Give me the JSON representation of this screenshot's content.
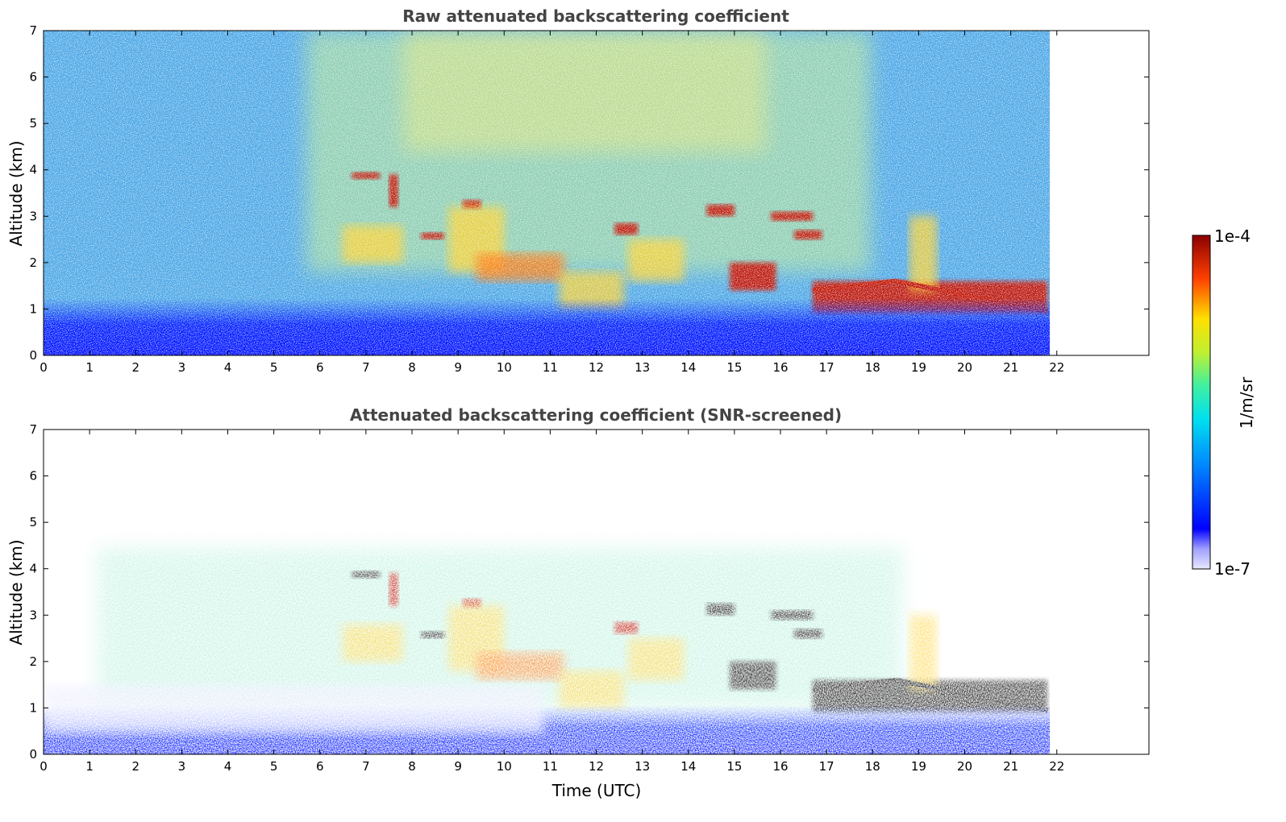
{
  "chart_data": [
    {
      "type": "heatmap",
      "title": "Raw attenuated backscattering coefficient",
      "xlabel": "",
      "ylabel": "Altitude (km)",
      "xlim": [
        0,
        24
      ],
      "ylim": [
        0,
        7
      ],
      "x_ticks": [
        "0",
        "1",
        "2",
        "3",
        "4",
        "5",
        "6",
        "7",
        "8",
        "9",
        "10",
        "11",
        "12",
        "13",
        "14",
        "15",
        "16",
        "17",
        "18",
        "19",
        "20",
        "21",
        "22"
      ],
      "y_ticks": [
        "0",
        "1",
        "2",
        "3",
        "4",
        "5",
        "6",
        "7"
      ],
      "data_end_time": 21.8,
      "colormap": "jet",
      "features": [
        {
          "name": "cloud",
          "t": [
            6.7,
            7.3
          ],
          "alt": [
            3.8,
            3.95
          ],
          "level": "high"
        },
        {
          "name": "cloud",
          "t": [
            7.5,
            7.7
          ],
          "alt": [
            3.2,
            3.9
          ],
          "level": "high"
        },
        {
          "name": "cloud",
          "t": [
            8.2,
            8.7
          ],
          "alt": [
            2.5,
            2.65
          ],
          "level": "high"
        },
        {
          "name": "cloud",
          "t": [
            9.1,
            9.5
          ],
          "alt": [
            3.15,
            3.35
          ],
          "level": "high"
        },
        {
          "name": "aerosol",
          "t": [
            6.5,
            7.8
          ],
          "alt": [
            2.0,
            2.8
          ],
          "level": "mid"
        },
        {
          "name": "aerosol",
          "t": [
            8.8,
            10.0
          ],
          "alt": [
            1.8,
            3.2
          ],
          "level": "mid"
        },
        {
          "name": "aerosol",
          "t": [
            9.4,
            11.3
          ],
          "alt": [
            1.6,
            2.2
          ],
          "level": "mid-high"
        },
        {
          "name": "aerosol",
          "t": [
            11.2,
            12.6
          ],
          "alt": [
            1.0,
            1.8
          ],
          "level": "mid"
        },
        {
          "name": "cloud",
          "t": [
            12.4,
            12.9
          ],
          "alt": [
            2.6,
            2.85
          ],
          "level": "high"
        },
        {
          "name": "aerosol",
          "t": [
            12.7,
            13.9
          ],
          "alt": [
            1.6,
            2.5
          ],
          "level": "mid"
        },
        {
          "name": "cloud",
          "t": [
            14.4,
            15.0
          ],
          "alt": [
            3.0,
            3.25
          ],
          "level": "high"
        },
        {
          "name": "cloud",
          "t": [
            14.9,
            15.9
          ],
          "alt": [
            1.4,
            2.0
          ],
          "level": "high"
        },
        {
          "name": "cloud",
          "t": [
            16.3,
            16.9
          ],
          "alt": [
            2.5,
            2.7
          ],
          "level": "high"
        },
        {
          "name": "cloud",
          "t": [
            15.8,
            16.7
          ],
          "alt": [
            2.9,
            3.1
          ],
          "level": "high"
        },
        {
          "name": "boundary-layer-top",
          "t": [
            16.7,
            21.8
          ],
          "alt": [
            0.9,
            1.6
          ],
          "level": "high"
        },
        {
          "name": "aerosol",
          "t": [
            18.8,
            19.4
          ],
          "alt": [
            1.4,
            3.0
          ],
          "level": "mid"
        }
      ]
    },
    {
      "type": "heatmap",
      "title": "Attenuated backscattering coefficient (SNR-screened)",
      "xlabel": "Time (UTC)",
      "ylabel": "Altitude (km)",
      "xlim": [
        0,
        24
      ],
      "ylim": [
        0,
        7
      ],
      "x_ticks": [
        "0",
        "1",
        "2",
        "3",
        "4",
        "5",
        "6",
        "7",
        "8",
        "9",
        "10",
        "11",
        "12",
        "13",
        "14",
        "15",
        "16",
        "17",
        "18",
        "19",
        "20",
        "21",
        "22"
      ],
      "y_ticks": [
        "0",
        "1",
        "2",
        "3",
        "4",
        "5",
        "6",
        "7"
      ],
      "data_end_time": 21.8,
      "colormap": "jet",
      "features": [
        {
          "name": "cloud",
          "t": [
            6.7,
            7.3
          ],
          "alt": [
            3.8,
            3.95
          ],
          "level": "saturated"
        },
        {
          "name": "cloud",
          "t": [
            7.5,
            7.7
          ],
          "alt": [
            3.2,
            3.9
          ],
          "level": "high"
        },
        {
          "name": "cloud",
          "t": [
            8.2,
            8.7
          ],
          "alt": [
            2.5,
            2.65
          ],
          "level": "saturated"
        },
        {
          "name": "cloud",
          "t": [
            9.1,
            9.5
          ],
          "alt": [
            3.15,
            3.35
          ],
          "level": "high"
        },
        {
          "name": "aerosol",
          "t": [
            6.5,
            7.8
          ],
          "alt": [
            2.0,
            2.8
          ],
          "level": "mid"
        },
        {
          "name": "aerosol",
          "t": [
            8.8,
            10.0
          ],
          "alt": [
            1.8,
            3.2
          ],
          "level": "mid"
        },
        {
          "name": "aerosol",
          "t": [
            9.4,
            11.3
          ],
          "alt": [
            1.6,
            2.2
          ],
          "level": "mid-high"
        },
        {
          "name": "aerosol",
          "t": [
            11.2,
            12.6
          ],
          "alt": [
            1.0,
            1.8
          ],
          "level": "mid"
        },
        {
          "name": "cloud",
          "t": [
            12.4,
            12.9
          ],
          "alt": [
            2.6,
            2.85
          ],
          "level": "high"
        },
        {
          "name": "aerosol",
          "t": [
            12.7,
            13.9
          ],
          "alt": [
            1.6,
            2.5
          ],
          "level": "mid"
        },
        {
          "name": "cloud",
          "t": [
            14.4,
            15.0
          ],
          "alt": [
            3.0,
            3.25
          ],
          "level": "saturated"
        },
        {
          "name": "cloud",
          "t": [
            14.9,
            15.9
          ],
          "alt": [
            1.4,
            2.0
          ],
          "level": "saturated"
        },
        {
          "name": "cloud",
          "t": [
            16.3,
            16.9
          ],
          "alt": [
            2.5,
            2.7
          ],
          "level": "saturated"
        },
        {
          "name": "cloud",
          "t": [
            15.8,
            16.7
          ],
          "alt": [
            2.9,
            3.1
          ],
          "level": "saturated"
        },
        {
          "name": "boundary-layer-top",
          "t": [
            16.7,
            21.8
          ],
          "alt": [
            0.9,
            1.6
          ],
          "level": "saturated"
        },
        {
          "name": "aerosol",
          "t": [
            18.8,
            19.4
          ],
          "alt": [
            1.4,
            3.0
          ],
          "level": "mid"
        }
      ]
    }
  ],
  "colorbar": {
    "label": "1/m/sr",
    "max_label": "1e-4",
    "min_label": "1e-7",
    "colormap": "jet",
    "scale": "log"
  },
  "colors": {
    "title": "#444444",
    "saturated": "#000000",
    "background": "#ffffff"
  }
}
